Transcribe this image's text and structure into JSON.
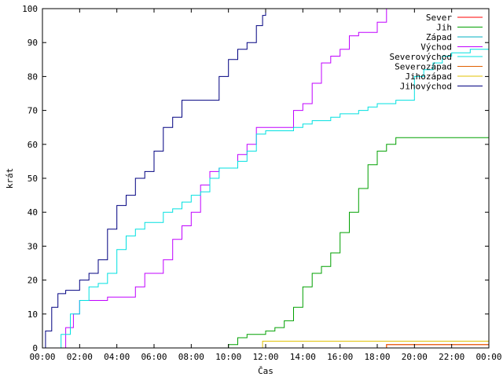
{
  "chart_data": {
    "type": "line",
    "xlabel": "Čas",
    "ylabel": "krát",
    "xlim": [
      "00:00",
      "24:00"
    ],
    "ylim": [
      0,
      100
    ],
    "x_ticks": [
      "00:00",
      "02:00",
      "04:00",
      "06:00",
      "08:00",
      "10:00",
      "12:00",
      "14:00",
      "16:00",
      "18:00",
      "20:00",
      "22:00",
      "00:00"
    ],
    "y_ticks": [
      0,
      10,
      20,
      30,
      40,
      50,
      60,
      70,
      80,
      90,
      100
    ],
    "legend_position": "top-right",
    "grid": false,
    "series": [
      {
        "name": "Sever",
        "color": "#ff0000",
        "x": [
          "00:00",
          "18:00",
          "18:30",
          "24:00"
        ],
        "y": [
          0,
          0,
          1,
          1
        ]
      },
      {
        "name": "Jih",
        "color": "#00a000",
        "x": [
          "00:00",
          "09:40",
          "10:00",
          "10:30",
          "11:00",
          "11:30",
          "12:00",
          "12:30",
          "13:00",
          "13:30",
          "14:00",
          "14:30",
          "15:00",
          "15:30",
          "16:00",
          "16:30",
          "17:00",
          "17:30",
          "18:00",
          "18:30",
          "19:00",
          "24:00"
        ],
        "y": [
          0,
          0,
          1,
          3,
          4,
          4,
          5,
          6,
          8,
          12,
          18,
          22,
          24,
          28,
          34,
          40,
          47,
          54,
          58,
          60,
          62,
          62
        ]
      },
      {
        "name": "Západ",
        "color": "#00b0c0",
        "x": [
          "00:00",
          "24:00"
        ],
        "y": [
          0,
          0
        ]
      },
      {
        "name": "Východ",
        "color": "#c000ff",
        "x": [
          "00:00",
          "00:50",
          "01:15",
          "01:40",
          "02:00",
          "02:30",
          "03:00",
          "03:30",
          "04:00",
          "04:30",
          "05:00",
          "05:30",
          "06:00",
          "06:30",
          "07:00",
          "07:30",
          "08:00",
          "08:30",
          "09:00",
          "09:30",
          "10:00",
          "10:30",
          "11:00",
          "11:30",
          "12:00",
          "12:30",
          "13:00",
          "13:30",
          "14:00",
          "14:30",
          "15:00",
          "15:30",
          "16:00",
          "16:30",
          "17:00",
          "17:30",
          "18:00",
          "18:30",
          "19:00"
        ],
        "y": [
          0,
          0,
          6,
          10,
          14,
          14,
          14,
          15,
          15,
          15,
          18,
          22,
          22,
          26,
          32,
          36,
          40,
          48,
          52,
          53,
          53,
          57,
          60,
          65,
          65,
          65,
          65,
          70,
          72,
          78,
          84,
          86,
          88,
          92,
          93,
          93,
          96,
          100,
          100
        ]
      },
      {
        "name": "Severovýchod",
        "color": "#00e0e0",
        "x": [
          "00:00",
          "00:45",
          "01:00",
          "01:30",
          "02:00",
          "02:30",
          "03:00",
          "03:30",
          "04:00",
          "04:30",
          "05:00",
          "05:30",
          "06:00",
          "06:30",
          "07:00",
          "07:30",
          "08:00",
          "08:30",
          "09:00",
          "09:30",
          "10:00",
          "10:30",
          "11:00",
          "11:30",
          "12:00",
          "12:30",
          "13:00",
          "13:30",
          "14:00",
          "14:30",
          "15:00",
          "15:30",
          "16:00",
          "16:30",
          "17:00",
          "17:30",
          "18:00",
          "18:30",
          "19:00",
          "19:30",
          "20:00",
          "20:30",
          "21:00",
          "21:30",
          "22:00",
          "22:30",
          "23:00",
          "23:30",
          "24:00"
        ],
        "y": [
          0,
          0,
          4,
          10,
          14,
          18,
          19,
          22,
          29,
          33,
          35,
          37,
          37,
          40,
          41,
          43,
          45,
          46,
          50,
          53,
          53,
          55,
          58,
          63,
          64,
          64,
          64,
          65,
          66,
          67,
          67,
          68,
          69,
          69,
          70,
          71,
          72,
          72,
          73,
          73,
          80,
          82,
          84,
          86,
          87,
          87,
          88,
          88,
          89
        ]
      },
      {
        "name": "Severozápad",
        "color": "#e06000",
        "x": [
          "00:00",
          "18:20",
          "18:30",
          "24:00"
        ],
        "y": [
          0,
          0,
          1,
          1
        ]
      },
      {
        "name": "Jihozápad",
        "color": "#e0c000",
        "x": [
          "00:00",
          "11:40",
          "11:50",
          "24:00"
        ],
        "y": [
          0,
          0,
          2,
          2
        ]
      },
      {
        "name": "Jihovýchod",
        "color": "#000080",
        "x": [
          "00:00",
          "00:10",
          "00:30",
          "00:50",
          "01:15",
          "01:30",
          "02:00",
          "02:30",
          "03:00",
          "03:30",
          "04:00",
          "04:30",
          "05:00",
          "05:30",
          "06:00",
          "06:30",
          "07:00",
          "07:30",
          "08:00",
          "08:30",
          "09:00",
          "09:30",
          "10:00",
          "10:30",
          "11:00",
          "11:30",
          "11:50",
          "12:00"
        ],
        "y": [
          0,
          5,
          12,
          16,
          17,
          17,
          20,
          22,
          26,
          35,
          42,
          45,
          50,
          52,
          58,
          65,
          68,
          73,
          73,
          73,
          73,
          80,
          85,
          88,
          90,
          95,
          98,
          100
        ]
      }
    ]
  }
}
